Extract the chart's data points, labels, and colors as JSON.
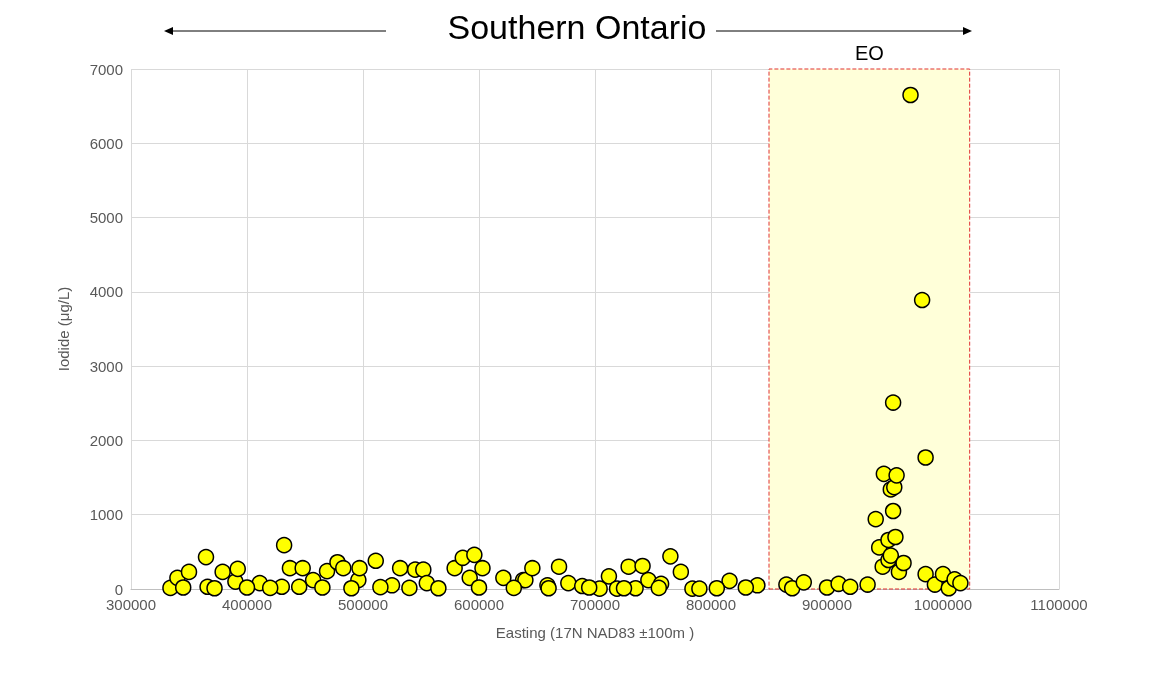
{
  "chart_data": {
    "type": "scatter",
    "title": "Southern Ontario",
    "xlabel": "Easting (17N NAD83 ±100m )",
    "ylabel": "Iodide (μg/L)",
    "x": [
      334000,
      340000,
      350000,
      364650,
      366000,
      379000,
      390000,
      392000,
      411000,
      430000,
      432000,
      437000,
      448000,
      457000,
      469000,
      478000,
      483000,
      496000,
      497000,
      511000,
      525000,
      532000,
      545000,
      552000,
      555000,
      579000,
      586000,
      592000,
      596000,
      603000,
      621000,
      638000,
      640000,
      646000,
      659000,
      669000,
      677000,
      689000,
      704000,
      712000,
      719000,
      729000,
      735000,
      741000,
      746000,
      757000,
      765000,
      774000,
      784000,
      816000,
      840000,
      345000,
      372000,
      400000,
      420000,
      445000,
      465000,
      490000,
      515000,
      540000,
      565000,
      600000,
      630000,
      660000,
      695000,
      725000,
      755000,
      790000,
      805000,
      830000,
      865000,
      870000,
      880000,
      900000,
      910000,
      920000,
      935000,
      942000,
      945000,
      948000,
      949000,
      953000,
      953000,
      955000,
      955000,
      957000,
      957000,
      958000,
      959000,
      960000,
      962000,
      966000,
      972000,
      982000,
      985000,
      985000,
      993000,
      1000000,
      1005000,
      1010000,
      1015000
    ],
    "values": [
      15,
      150,
      230,
      430,
      30,
      230,
      100,
      270,
      80,
      30,
      590,
      280,
      280,
      120,
      240,
      360,
      280,
      120,
      280,
      380,
      50,
      280,
      260,
      260,
      80,
      280,
      420,
      150,
      460,
      280,
      150,
      120,
      120,
      280,
      50,
      300,
      80,
      40,
      5,
      170,
      5,
      300,
      10,
      310,
      120,
      70,
      440,
      230,
      5,
      110,
      50,
      20,
      10,
      20,
      15,
      30,
      20,
      10,
      25,
      15,
      10,
      20,
      15,
      10,
      20,
      10,
      15,
      5,
      10,
      20,
      60,
      10,
      90,
      20,
      70,
      30,
      60,
      940,
      560,
      300,
      1550,
      390,
      660,
      450,
      1340,
      2510,
      1050,
      1370,
      700,
      1530,
      230,
      350,
      6650,
      3890,
      1770,
      200,
      60,
      200,
      10,
      130,
      80
    ],
    "color": "#ffff00",
    "marker": "circle",
    "grid": true,
    "xlim": [
      300000,
      1100000
    ],
    "xticks": [
      300000,
      400000,
      500000,
      600000,
      700000,
      800000,
      900000,
      1000000,
      1100000
    ],
    "ylim": [
      0,
      7000
    ],
    "yticks": [
      0,
      1000,
      2000,
      3000,
      4000,
      5000,
      6000,
      7000
    ],
    "bands": [
      {
        "axis": "x",
        "from": 850000,
        "to": 1023000,
        "label": "EO",
        "color": "#ffffd9"
      }
    ]
  }
}
